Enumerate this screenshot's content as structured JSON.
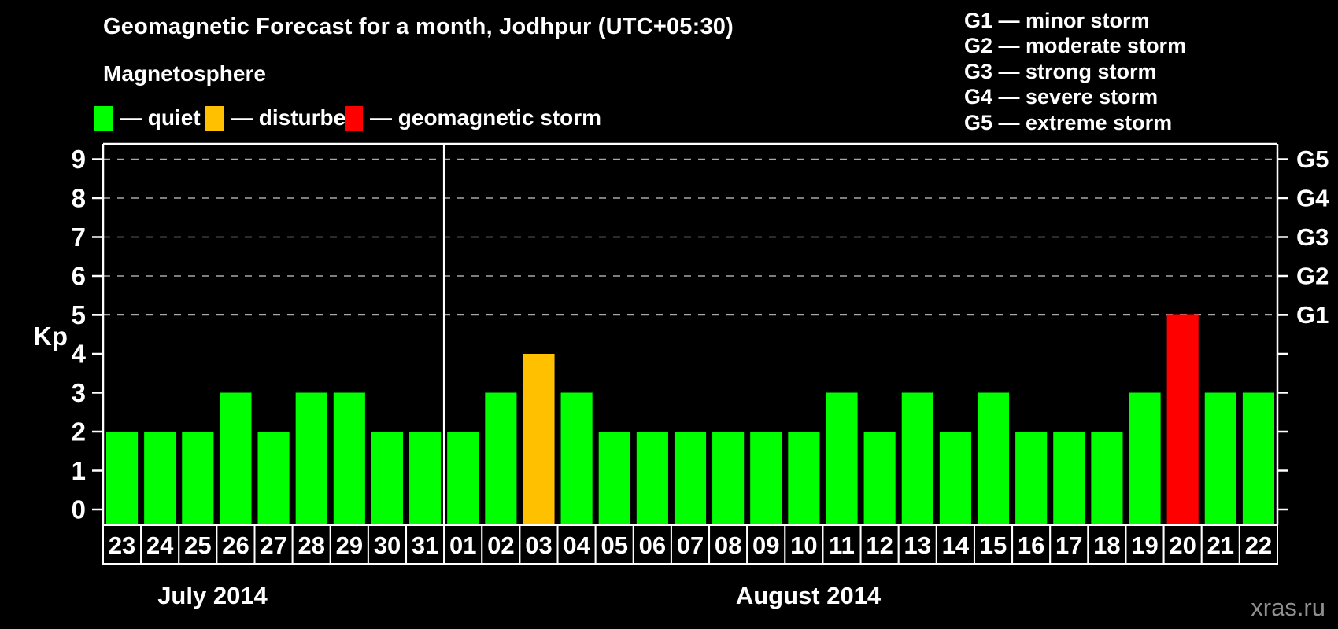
{
  "title": "Geomagnetic Forecast for a month, Jodhpur (UTC+05:30)",
  "legend": {
    "heading": "Magnetosphere",
    "items": [
      {
        "label": "— quiet",
        "color": "#00ff00"
      },
      {
        "label": "— disturbed",
        "color": "#ffc000"
      },
      {
        "label": "— geomagnetic storm",
        "color": "#ff0000"
      }
    ]
  },
  "g_scale_legend": [
    "G1 — minor storm",
    "G2 — moderate storm",
    "G3 — strong storm",
    "G4 — severe storm",
    "G5 — extreme storm"
  ],
  "watermark": "xras.ru",
  "chart_data": {
    "type": "bar",
    "title": "Geomagnetic Forecast for a month, Jodhpur (UTC+05:30)",
    "xlabel": "",
    "ylabel": "Kp",
    "ylim": [
      0,
      9
    ],
    "yticks": [
      0,
      1,
      2,
      3,
      4,
      5,
      6,
      7,
      8,
      9
    ],
    "gridlines_at": [
      5,
      6,
      7,
      8,
      9
    ],
    "grid_style": "dashed-gray",
    "right_axis": [
      {
        "kp": 5,
        "label": "G1"
      },
      {
        "kp": 6,
        "label": "G2"
      },
      {
        "kp": 7,
        "label": "G3"
      },
      {
        "kp": 8,
        "label": "G4"
      },
      {
        "kp": 9,
        "label": "G5"
      }
    ],
    "months": [
      {
        "label": "July 2014",
        "days": [
          "23",
          "24",
          "25",
          "26",
          "27",
          "28",
          "29",
          "30",
          "31"
        ],
        "kp": [
          2,
          2,
          2,
          3,
          2,
          3,
          3,
          2,
          2
        ]
      },
      {
        "label": "August 2014",
        "days": [
          "01",
          "02",
          "03",
          "04",
          "05",
          "06",
          "07",
          "08",
          "09",
          "10",
          "11",
          "12",
          "13",
          "14",
          "15",
          "16",
          "17",
          "18",
          "19",
          "20",
          "21",
          "22"
        ],
        "kp": [
          2,
          3,
          4,
          3,
          2,
          2,
          2,
          2,
          2,
          2,
          3,
          2,
          3,
          2,
          3,
          2,
          2,
          2,
          3,
          5,
          3,
          3
        ]
      }
    ],
    "colors": {
      "quiet": "#00ff00",
      "disturbed": "#ffc000",
      "storm": "#ff0000",
      "frame": "#ffffff",
      "gridline": "#a8a8a8",
      "background": "#000000"
    },
    "color_rule": {
      "disturbed_min_kp": 4,
      "storm_min_kp": 5
    },
    "legend_position": "top-left",
    "month_separator_after_day_index": 8
  }
}
